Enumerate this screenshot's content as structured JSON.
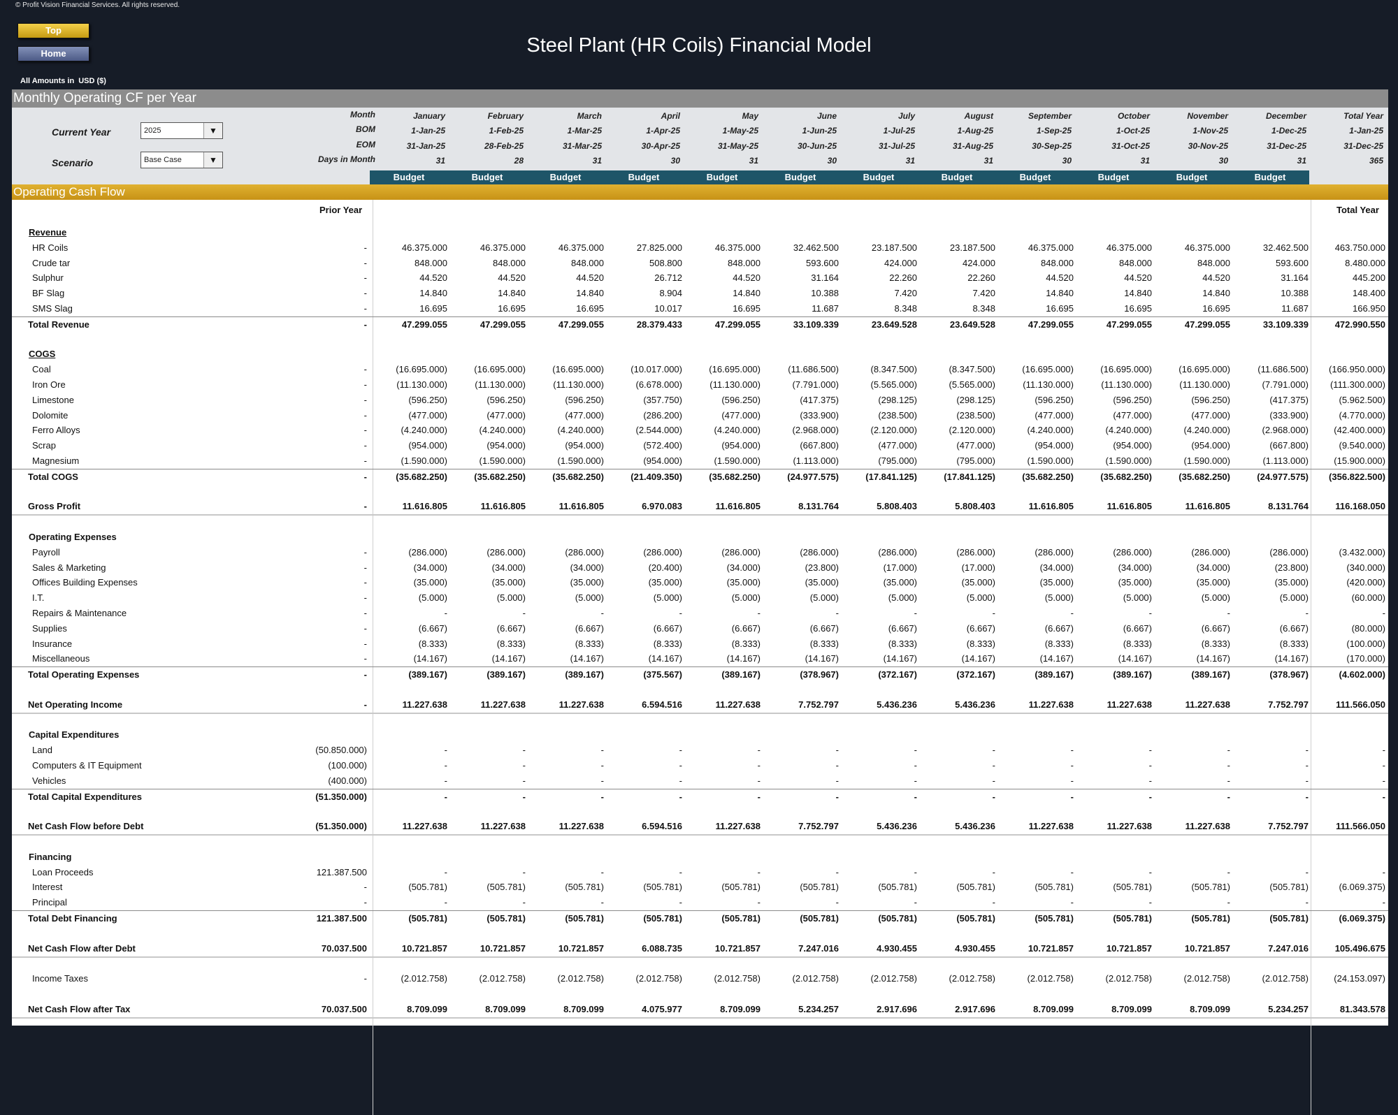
{
  "copyright": "© Profit Vision Financial Services. All rights reserved.",
  "nav": {
    "top": "Top",
    "home": "Home"
  },
  "title": "Steel Plant (HR Coils) Financial Model",
  "units": {
    "label": "All Amounts in",
    "currency": "USD ($)"
  },
  "section_title": "Monthly Operating CF per Year",
  "controls": {
    "current_year_label": "Current Year",
    "current_year_value": "2025",
    "scenario_label": "Scenario",
    "scenario_value": "Base Case"
  },
  "header_rows": {
    "month": "Month",
    "bom": "BOM",
    "eom": "EOM",
    "days": "Days in Month"
  },
  "months": [
    {
      "name": "January",
      "bom": "1-Jan-25",
      "eom": "31-Jan-25",
      "days": "31"
    },
    {
      "name": "February",
      "bom": "1-Feb-25",
      "eom": "28-Feb-25",
      "days": "28"
    },
    {
      "name": "March",
      "bom": "1-Mar-25",
      "eom": "31-Mar-25",
      "days": "31"
    },
    {
      "name": "April",
      "bom": "1-Apr-25",
      "eom": "30-Apr-25",
      "days": "30"
    },
    {
      "name": "May",
      "bom": "1-May-25",
      "eom": "31-May-25",
      "days": "31"
    },
    {
      "name": "June",
      "bom": "1-Jun-25",
      "eom": "30-Jun-25",
      "days": "30"
    },
    {
      "name": "July",
      "bom": "1-Jul-25",
      "eom": "31-Jul-25",
      "days": "31"
    },
    {
      "name": "August",
      "bom": "1-Aug-25",
      "eom": "31-Aug-25",
      "days": "31"
    },
    {
      "name": "September",
      "bom": "1-Sep-25",
      "eom": "30-Sep-25",
      "days": "30"
    },
    {
      "name": "October",
      "bom": "1-Oct-25",
      "eom": "31-Oct-25",
      "days": "31"
    },
    {
      "name": "November",
      "bom": "1-Nov-25",
      "eom": "30-Nov-25",
      "days": "30"
    },
    {
      "name": "December",
      "bom": "1-Dec-25",
      "eom": "31-Dec-25",
      "days": "31"
    },
    {
      "name": "Total Year",
      "bom": "1-Jan-25",
      "eom": "31-Dec-25",
      "days": "365"
    }
  ],
  "budget_label": "Budget",
  "ocf_title": "Operating Cash Flow",
  "prior_year_label": "Prior Year",
  "total_year_label": "Total Year",
  "rows": [
    {
      "label": "Revenue",
      "style": "section-underline"
    },
    {
      "label": "HR Coils",
      "style": "item",
      "prior": "-",
      "values": [
        "46.375.000",
        "46.375.000",
        "46.375.000",
        "27.825.000",
        "46.375.000",
        "32.462.500",
        "23.187.500",
        "23.187.500",
        "46.375.000",
        "46.375.000",
        "46.375.000",
        "32.462.500"
      ],
      "total": "463.750.000"
    },
    {
      "label": "Crude tar",
      "style": "item",
      "prior": "-",
      "values": [
        "848.000",
        "848.000",
        "848.000",
        "508.800",
        "848.000",
        "593.600",
        "424.000",
        "424.000",
        "848.000",
        "848.000",
        "848.000",
        "593.600"
      ],
      "total": "8.480.000"
    },
    {
      "label": "Sulphur",
      "style": "item",
      "prior": "-",
      "values": [
        "44.520",
        "44.520",
        "44.520",
        "26.712",
        "44.520",
        "31.164",
        "22.260",
        "22.260",
        "44.520",
        "44.520",
        "44.520",
        "31.164"
      ],
      "total": "445.200"
    },
    {
      "label": "BF Slag",
      "style": "item",
      "prior": "-",
      "values": [
        "14.840",
        "14.840",
        "14.840",
        "8.904",
        "14.840",
        "10.388",
        "7.420",
        "7.420",
        "14.840",
        "14.840",
        "14.840",
        "10.388"
      ],
      "total": "148.400"
    },
    {
      "label": "SMS Slag",
      "style": "item",
      "prior": "-",
      "values": [
        "16.695",
        "16.695",
        "16.695",
        "10.017",
        "16.695",
        "11.687",
        "8.348",
        "8.348",
        "16.695",
        "16.695",
        "16.695",
        "11.687"
      ],
      "total": "166.950"
    },
    {
      "label": "Total Revenue",
      "style": "total",
      "prior": "-",
      "values": [
        "47.299.055",
        "47.299.055",
        "47.299.055",
        "28.379.433",
        "47.299.055",
        "33.109.339",
        "23.649.528",
        "23.649.528",
        "47.299.055",
        "47.299.055",
        "47.299.055",
        "33.109.339"
      ],
      "total": "472.990.550"
    },
    {
      "label": "",
      "style": "blank"
    },
    {
      "label": "COGS",
      "style": "section-underline"
    },
    {
      "label": "Coal",
      "style": "item",
      "prior": "-",
      "values": [
        "(16.695.000)",
        "(16.695.000)",
        "(16.695.000)",
        "(10.017.000)",
        "(16.695.000)",
        "(11.686.500)",
        "(8.347.500)",
        "(8.347.500)",
        "(16.695.000)",
        "(16.695.000)",
        "(16.695.000)",
        "(11.686.500)"
      ],
      "total": "(166.950.000)"
    },
    {
      "label": "Iron Ore",
      "style": "item",
      "prior": "-",
      "values": [
        "(11.130.000)",
        "(11.130.000)",
        "(11.130.000)",
        "(6.678.000)",
        "(11.130.000)",
        "(7.791.000)",
        "(5.565.000)",
        "(5.565.000)",
        "(11.130.000)",
        "(11.130.000)",
        "(11.130.000)",
        "(7.791.000)"
      ],
      "total": "(111.300.000)"
    },
    {
      "label": "Limestone",
      "style": "item",
      "prior": "-",
      "values": [
        "(596.250)",
        "(596.250)",
        "(596.250)",
        "(357.750)",
        "(596.250)",
        "(417.375)",
        "(298.125)",
        "(298.125)",
        "(596.250)",
        "(596.250)",
        "(596.250)",
        "(417.375)"
      ],
      "total": "(5.962.500)"
    },
    {
      "label": "Dolomite",
      "style": "item",
      "prior": "-",
      "values": [
        "(477.000)",
        "(477.000)",
        "(477.000)",
        "(286.200)",
        "(477.000)",
        "(333.900)",
        "(238.500)",
        "(238.500)",
        "(477.000)",
        "(477.000)",
        "(477.000)",
        "(333.900)"
      ],
      "total": "(4.770.000)"
    },
    {
      "label": "Ferro Alloys",
      "style": "item",
      "prior": "-",
      "values": [
        "(4.240.000)",
        "(4.240.000)",
        "(4.240.000)",
        "(2.544.000)",
        "(4.240.000)",
        "(2.968.000)",
        "(2.120.000)",
        "(2.120.000)",
        "(4.240.000)",
        "(4.240.000)",
        "(4.240.000)",
        "(2.968.000)"
      ],
      "total": "(42.400.000)"
    },
    {
      "label": "Scrap",
      "style": "item",
      "prior": "-",
      "values": [
        "(954.000)",
        "(954.000)",
        "(954.000)",
        "(572.400)",
        "(954.000)",
        "(667.800)",
        "(477.000)",
        "(477.000)",
        "(954.000)",
        "(954.000)",
        "(954.000)",
        "(667.800)"
      ],
      "total": "(9.540.000)"
    },
    {
      "label": "Magnesium",
      "style": "item",
      "prior": "-",
      "values": [
        "(1.590.000)",
        "(1.590.000)",
        "(1.590.000)",
        "(954.000)",
        "(1.590.000)",
        "(1.113.000)",
        "(795.000)",
        "(795.000)",
        "(1.590.000)",
        "(1.590.000)",
        "(1.590.000)",
        "(1.113.000)"
      ],
      "total": "(15.900.000)"
    },
    {
      "label": "Total COGS",
      "style": "total",
      "prior": "-",
      "values": [
        "(35.682.250)",
        "(35.682.250)",
        "(35.682.250)",
        "(21.409.350)",
        "(35.682.250)",
        "(24.977.575)",
        "(17.841.125)",
        "(17.841.125)",
        "(35.682.250)",
        "(35.682.250)",
        "(35.682.250)",
        "(24.977.575)"
      ],
      "total": "(356.822.500)"
    },
    {
      "label": "",
      "style": "blank"
    },
    {
      "label": "Gross Profit",
      "style": "subtotal",
      "prior": "-",
      "values": [
        "11.616.805",
        "11.616.805",
        "11.616.805",
        "6.970.083",
        "11.616.805",
        "8.131.764",
        "5.808.403",
        "5.808.403",
        "11.616.805",
        "11.616.805",
        "11.616.805",
        "8.131.764"
      ],
      "total": "116.168.050"
    },
    {
      "label": "",
      "style": "blank"
    },
    {
      "label": "Operating Expenses",
      "style": "section"
    },
    {
      "label": "Payroll",
      "style": "item",
      "prior": "-",
      "values": [
        "(286.000)",
        "(286.000)",
        "(286.000)",
        "(286.000)",
        "(286.000)",
        "(286.000)",
        "(286.000)",
        "(286.000)",
        "(286.000)",
        "(286.000)",
        "(286.000)",
        "(286.000)"
      ],
      "total": "(3.432.000)"
    },
    {
      "label": "Sales & Marketing",
      "style": "item",
      "prior": "-",
      "values": [
        "(34.000)",
        "(34.000)",
        "(34.000)",
        "(20.400)",
        "(34.000)",
        "(23.800)",
        "(17.000)",
        "(17.000)",
        "(34.000)",
        "(34.000)",
        "(34.000)",
        "(23.800)"
      ],
      "total": "(340.000)"
    },
    {
      "label": "Offices Building Expenses",
      "style": "item",
      "prior": "-",
      "values": [
        "(35.000)",
        "(35.000)",
        "(35.000)",
        "(35.000)",
        "(35.000)",
        "(35.000)",
        "(35.000)",
        "(35.000)",
        "(35.000)",
        "(35.000)",
        "(35.000)",
        "(35.000)"
      ],
      "total": "(420.000)"
    },
    {
      "label": "I.T.",
      "style": "item",
      "prior": "-",
      "values": [
        "(5.000)",
        "(5.000)",
        "(5.000)",
        "(5.000)",
        "(5.000)",
        "(5.000)",
        "(5.000)",
        "(5.000)",
        "(5.000)",
        "(5.000)",
        "(5.000)",
        "(5.000)"
      ],
      "total": "(60.000)"
    },
    {
      "label": "Repairs & Maintenance",
      "style": "item",
      "prior": "-",
      "values": [
        "-",
        "-",
        "-",
        "-",
        "-",
        "-",
        "-",
        "-",
        "-",
        "-",
        "-",
        "-"
      ],
      "total": "-"
    },
    {
      "label": "Supplies",
      "style": "item",
      "prior": "-",
      "values": [
        "(6.667)",
        "(6.667)",
        "(6.667)",
        "(6.667)",
        "(6.667)",
        "(6.667)",
        "(6.667)",
        "(6.667)",
        "(6.667)",
        "(6.667)",
        "(6.667)",
        "(6.667)"
      ],
      "total": "(80.000)"
    },
    {
      "label": "Insurance",
      "style": "item",
      "prior": "-",
      "values": [
        "(8.333)",
        "(8.333)",
        "(8.333)",
        "(8.333)",
        "(8.333)",
        "(8.333)",
        "(8.333)",
        "(8.333)",
        "(8.333)",
        "(8.333)",
        "(8.333)",
        "(8.333)"
      ],
      "total": "(100.000)"
    },
    {
      "label": "Miscellaneous",
      "style": "item",
      "prior": "-",
      "values": [
        "(14.167)",
        "(14.167)",
        "(14.167)",
        "(14.167)",
        "(14.167)",
        "(14.167)",
        "(14.167)",
        "(14.167)",
        "(14.167)",
        "(14.167)",
        "(14.167)",
        "(14.167)"
      ],
      "total": "(170.000)"
    },
    {
      "label": "Total Operating Expenses",
      "style": "total",
      "prior": "-",
      "values": [
        "(389.167)",
        "(389.167)",
        "(389.167)",
        "(375.567)",
        "(389.167)",
        "(378.967)",
        "(372.167)",
        "(372.167)",
        "(389.167)",
        "(389.167)",
        "(389.167)",
        "(378.967)"
      ],
      "total": "(4.602.000)"
    },
    {
      "label": "",
      "style": "blank"
    },
    {
      "label": "Net Operating Income",
      "style": "subtotal",
      "prior": "-",
      "values": [
        "11.227.638",
        "11.227.638",
        "11.227.638",
        "6.594.516",
        "11.227.638",
        "7.752.797",
        "5.436.236",
        "5.436.236",
        "11.227.638",
        "11.227.638",
        "11.227.638",
        "7.752.797"
      ],
      "total": "111.566.050"
    },
    {
      "label": "",
      "style": "blank"
    },
    {
      "label": "Capital Expenditures",
      "style": "section"
    },
    {
      "label": "Land",
      "style": "item",
      "prior": "(50.850.000)",
      "values": [
        "-",
        "-",
        "-",
        "-",
        "-",
        "-",
        "-",
        "-",
        "-",
        "-",
        "-",
        "-"
      ],
      "total": "-"
    },
    {
      "label": "Computers & IT Equipment",
      "style": "item",
      "prior": "(100.000)",
      "values": [
        "-",
        "-",
        "-",
        "-",
        "-",
        "-",
        "-",
        "-",
        "-",
        "-",
        "-",
        "-"
      ],
      "total": "-"
    },
    {
      "label": "Vehicles",
      "style": "item",
      "prior": "(400.000)",
      "values": [
        "-",
        "-",
        "-",
        "-",
        "-",
        "-",
        "-",
        "-",
        "-",
        "-",
        "-",
        "-"
      ],
      "total": "-"
    },
    {
      "label": "Total Capital Expenditures",
      "style": "total",
      "prior": "(51.350.000)",
      "values": [
        "-",
        "-",
        "-",
        "-",
        "-",
        "-",
        "-",
        "-",
        "-",
        "-",
        "-",
        "-"
      ],
      "total": "-"
    },
    {
      "label": "",
      "style": "blank"
    },
    {
      "label": "Net Cash Flow before Debt",
      "style": "subtotal",
      "prior": "(51.350.000)",
      "values": [
        "11.227.638",
        "11.227.638",
        "11.227.638",
        "6.594.516",
        "11.227.638",
        "7.752.797",
        "5.436.236",
        "5.436.236",
        "11.227.638",
        "11.227.638",
        "11.227.638",
        "7.752.797"
      ],
      "total": "111.566.050"
    },
    {
      "label": "",
      "style": "blank"
    },
    {
      "label": "Financing",
      "style": "section"
    },
    {
      "label": "Loan Proceeds",
      "style": "item",
      "prior": "121.387.500",
      "values": [
        "-",
        "-",
        "-",
        "-",
        "-",
        "-",
        "-",
        "-",
        "-",
        "-",
        "-",
        "-"
      ],
      "total": "-"
    },
    {
      "label": "Interest",
      "style": "item",
      "prior": "-",
      "values": [
        "(505.781)",
        "(505.781)",
        "(505.781)",
        "(505.781)",
        "(505.781)",
        "(505.781)",
        "(505.781)",
        "(505.781)",
        "(505.781)",
        "(505.781)",
        "(505.781)",
        "(505.781)"
      ],
      "total": "(6.069.375)"
    },
    {
      "label": "Principal",
      "style": "item",
      "prior": "-",
      "values": [
        "-",
        "-",
        "-",
        "-",
        "-",
        "-",
        "-",
        "-",
        "-",
        "-",
        "-",
        "-"
      ],
      "total": "-"
    },
    {
      "label": "Total Debt Financing",
      "style": "total",
      "prior": "121.387.500",
      "values": [
        "(505.781)",
        "(505.781)",
        "(505.781)",
        "(505.781)",
        "(505.781)",
        "(505.781)",
        "(505.781)",
        "(505.781)",
        "(505.781)",
        "(505.781)",
        "(505.781)",
        "(505.781)"
      ],
      "total": "(6.069.375)"
    },
    {
      "label": "",
      "style": "blank"
    },
    {
      "label": "Net Cash Flow after Debt",
      "style": "subtotal",
      "prior": "70.037.500",
      "values": [
        "10.721.857",
        "10.721.857",
        "10.721.857",
        "6.088.735",
        "10.721.857",
        "7.247.016",
        "4.930.455",
        "4.930.455",
        "10.721.857",
        "10.721.857",
        "10.721.857",
        "7.247.016"
      ],
      "total": "105.496.675"
    },
    {
      "label": "",
      "style": "blank"
    },
    {
      "label": "Income Taxes",
      "style": "item",
      "prior": "-",
      "values": [
        "(2.012.758)",
        "(2.012.758)",
        "(2.012.758)",
        "(2.012.758)",
        "(2.012.758)",
        "(2.012.758)",
        "(2.012.758)",
        "(2.012.758)",
        "(2.012.758)",
        "(2.012.758)",
        "(2.012.758)",
        "(2.012.758)"
      ],
      "total": "(24.153.097)"
    },
    {
      "label": "",
      "style": "blank"
    },
    {
      "label": "Net Cash Flow after Tax",
      "style": "subtotal",
      "prior": "70.037.500",
      "values": [
        "8.709.099",
        "8.709.099",
        "8.709.099",
        "4.075.977",
        "8.709.099",
        "5.234.257",
        "2.917.696",
        "2.917.696",
        "8.709.099",
        "8.709.099",
        "8.709.099",
        "5.234.257"
      ],
      "total": "81.343.578"
    }
  ]
}
